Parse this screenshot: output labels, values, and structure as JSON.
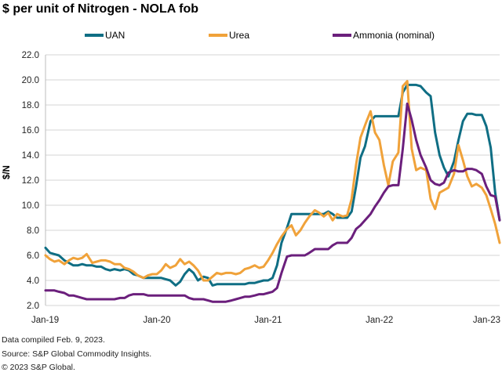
{
  "title": "$ per unit of Nitrogen - NOLA fob",
  "footer": {
    "line1": "Data compiled Feb. 9, 2023.",
    "line2": "Source: S&P Global Commodity Insights.",
    "line3": "© 2023 S&P Global."
  },
  "chart_data": {
    "type": "line",
    "title": "$ per unit of Nitrogen - NOLA fob",
    "xlabel": "",
    "ylabel": "$/N",
    "ylim": [
      2.0,
      22.0
    ],
    "yticks": [
      2.0,
      4.0,
      6.0,
      8.0,
      10.0,
      12.0,
      14.0,
      16.0,
      18.0,
      20.0,
      22.0
    ],
    "xlim": [
      2019.0,
      2023.08
    ],
    "xtick_labels": [
      "Jan-19",
      "Jan-20",
      "Jan-21",
      "Jan-22",
      "Jan-23"
    ],
    "xtick_values": [
      2019,
      2020,
      2021,
      2022,
      2023
    ],
    "grid": true,
    "legend": "top",
    "series": [
      {
        "name": "UAN",
        "color": "#0F6E84",
        "points": [
          [
            2019.0,
            6.6
          ],
          [
            2019.04,
            6.2
          ],
          [
            2019.08,
            6.1
          ],
          [
            2019.12,
            6.0
          ],
          [
            2019.17,
            5.6
          ],
          [
            2019.21,
            5.4
          ],
          [
            2019.25,
            5.2
          ],
          [
            2019.29,
            5.2
          ],
          [
            2019.33,
            5.3
          ],
          [
            2019.37,
            5.2
          ],
          [
            2019.42,
            5.2
          ],
          [
            2019.46,
            5.1
          ],
          [
            2019.5,
            5.1
          ],
          [
            2019.54,
            4.9
          ],
          [
            2019.58,
            4.8
          ],
          [
            2019.62,
            4.9
          ],
          [
            2019.67,
            4.8
          ],
          [
            2019.71,
            4.9
          ],
          [
            2019.75,
            4.8
          ],
          [
            2019.79,
            4.5
          ],
          [
            2019.83,
            4.4
          ],
          [
            2019.88,
            4.2
          ],
          [
            2019.92,
            4.2
          ],
          [
            2019.96,
            4.2
          ],
          [
            2020.0,
            4.2
          ],
          [
            2020.04,
            4.2
          ],
          [
            2020.08,
            4.1
          ],
          [
            2020.12,
            4.0
          ],
          [
            2020.17,
            3.6
          ],
          [
            2020.21,
            3.9
          ],
          [
            2020.25,
            4.5
          ],
          [
            2020.29,
            4.9
          ],
          [
            2020.33,
            4.6
          ],
          [
            2020.37,
            4.0
          ],
          [
            2020.42,
            4.3
          ],
          [
            2020.46,
            4.2
          ],
          [
            2020.5,
            3.6
          ],
          [
            2020.54,
            3.7
          ],
          [
            2020.58,
            3.7
          ],
          [
            2020.62,
            3.7
          ],
          [
            2020.67,
            3.7
          ],
          [
            2020.71,
            3.7
          ],
          [
            2020.75,
            3.7
          ],
          [
            2020.79,
            3.7
          ],
          [
            2020.83,
            3.8
          ],
          [
            2020.88,
            3.8
          ],
          [
            2020.92,
            3.9
          ],
          [
            2020.96,
            4.0
          ],
          [
            2021.0,
            4.0
          ],
          [
            2021.04,
            4.2
          ],
          [
            2021.08,
            5.2
          ],
          [
            2021.12,
            7.0
          ],
          [
            2021.17,
            8.2
          ],
          [
            2021.21,
            9.3
          ],
          [
            2021.25,
            9.3
          ],
          [
            2021.29,
            9.3
          ],
          [
            2021.33,
            9.3
          ],
          [
            2021.37,
            9.3
          ],
          [
            2021.42,
            9.3
          ],
          [
            2021.46,
            9.3
          ],
          [
            2021.5,
            9.3
          ],
          [
            2021.54,
            9.5
          ],
          [
            2021.58,
            9.3
          ],
          [
            2021.62,
            9.0
          ],
          [
            2021.67,
            9.0
          ],
          [
            2021.71,
            9.0
          ],
          [
            2021.75,
            9.5
          ],
          [
            2021.79,
            11.5
          ],
          [
            2021.83,
            13.8
          ],
          [
            2021.87,
            14.7
          ],
          [
            2021.92,
            16.7
          ],
          [
            2021.96,
            17.1
          ],
          [
            2022.0,
            17.1
          ],
          [
            2022.04,
            17.1
          ],
          [
            2022.08,
            17.1
          ],
          [
            2022.12,
            17.1
          ],
          [
            2022.17,
            17.1
          ],
          [
            2022.21,
            19.0
          ],
          [
            2022.25,
            19.6
          ],
          [
            2022.29,
            19.6
          ],
          [
            2022.33,
            19.6
          ],
          [
            2022.37,
            19.5
          ],
          [
            2022.42,
            19.0
          ],
          [
            2022.46,
            18.7
          ],
          [
            2022.5,
            15.8
          ],
          [
            2022.54,
            14.0
          ],
          [
            2022.58,
            13.0
          ],
          [
            2022.62,
            12.3
          ],
          [
            2022.67,
            13.5
          ],
          [
            2022.71,
            15.2
          ],
          [
            2022.75,
            16.7
          ],
          [
            2022.79,
            17.3
          ],
          [
            2022.83,
            17.3
          ],
          [
            2022.87,
            17.2
          ],
          [
            2022.92,
            17.2
          ],
          [
            2022.96,
            16.3
          ],
          [
            2023.0,
            14.6
          ],
          [
            2023.04,
            11.0
          ],
          [
            2023.08,
            8.8
          ]
        ]
      },
      {
        "name": "Urea",
        "color": "#F0A23A",
        "points": [
          [
            2019.0,
            6.0
          ],
          [
            2019.04,
            5.7
          ],
          [
            2019.08,
            5.5
          ],
          [
            2019.12,
            5.6
          ],
          [
            2019.17,
            5.3
          ],
          [
            2019.21,
            5.6
          ],
          [
            2019.25,
            5.8
          ],
          [
            2019.29,
            5.7
          ],
          [
            2019.33,
            5.8
          ],
          [
            2019.37,
            6.1
          ],
          [
            2019.42,
            5.4
          ],
          [
            2019.46,
            5.5
          ],
          [
            2019.5,
            5.6
          ],
          [
            2019.54,
            5.6
          ],
          [
            2019.58,
            5.5
          ],
          [
            2019.62,
            5.3
          ],
          [
            2019.67,
            5.3
          ],
          [
            2019.71,
            5.0
          ],
          [
            2019.75,
            4.9
          ],
          [
            2019.79,
            4.7
          ],
          [
            2019.83,
            4.4
          ],
          [
            2019.88,
            4.2
          ],
          [
            2019.92,
            4.4
          ],
          [
            2019.96,
            4.5
          ],
          [
            2020.0,
            4.5
          ],
          [
            2020.04,
            4.8
          ],
          [
            2020.08,
            5.3
          ],
          [
            2020.12,
            5.0
          ],
          [
            2020.17,
            5.2
          ],
          [
            2020.21,
            5.7
          ],
          [
            2020.25,
            5.3
          ],
          [
            2020.29,
            5.5
          ],
          [
            2020.33,
            5.2
          ],
          [
            2020.37,
            4.8
          ],
          [
            2020.42,
            4.0
          ],
          [
            2020.46,
            4.0
          ],
          [
            2020.5,
            4.3
          ],
          [
            2020.54,
            4.6
          ],
          [
            2020.58,
            4.5
          ],
          [
            2020.62,
            4.6
          ],
          [
            2020.67,
            4.6
          ],
          [
            2020.71,
            4.5
          ],
          [
            2020.75,
            4.6
          ],
          [
            2020.79,
            4.9
          ],
          [
            2020.83,
            5.0
          ],
          [
            2020.88,
            5.2
          ],
          [
            2020.92,
            5.0
          ],
          [
            2020.96,
            5.1
          ],
          [
            2021.0,
            5.6
          ],
          [
            2021.04,
            6.2
          ],
          [
            2021.08,
            6.9
          ],
          [
            2021.12,
            7.5
          ],
          [
            2021.17,
            8.1
          ],
          [
            2021.21,
            8.4
          ],
          [
            2021.25,
            7.6
          ],
          [
            2021.29,
            8.0
          ],
          [
            2021.33,
            8.6
          ],
          [
            2021.37,
            9.1
          ],
          [
            2021.42,
            9.6
          ],
          [
            2021.46,
            9.4
          ],
          [
            2021.5,
            9.1
          ],
          [
            2021.54,
            9.4
          ],
          [
            2021.58,
            8.8
          ],
          [
            2021.62,
            9.3
          ],
          [
            2021.67,
            9.1
          ],
          [
            2021.71,
            9.2
          ],
          [
            2021.75,
            10.5
          ],
          [
            2021.79,
            13.2
          ],
          [
            2021.83,
            15.4
          ],
          [
            2021.88,
            16.6
          ],
          [
            2021.92,
            17.5
          ],
          [
            2021.96,
            15.8
          ],
          [
            2022.0,
            15.2
          ],
          [
            2022.04,
            13.2
          ],
          [
            2022.08,
            11.6
          ],
          [
            2022.12,
            13.5
          ],
          [
            2022.17,
            14.2
          ],
          [
            2022.21,
            19.5
          ],
          [
            2022.25,
            19.9
          ],
          [
            2022.29,
            14.5
          ],
          [
            2022.33,
            12.8
          ],
          [
            2022.37,
            13.0
          ],
          [
            2022.42,
            12.8
          ],
          [
            2022.46,
            10.5
          ],
          [
            2022.5,
            9.7
          ],
          [
            2022.54,
            11.0
          ],
          [
            2022.58,
            11.2
          ],
          [
            2022.62,
            11.4
          ],
          [
            2022.67,
            12.5
          ],
          [
            2022.71,
            14.8
          ],
          [
            2022.75,
            13.6
          ],
          [
            2022.79,
            12.3
          ],
          [
            2022.83,
            11.5
          ],
          [
            2022.87,
            11.7
          ],
          [
            2022.92,
            11.4
          ],
          [
            2022.96,
            10.8
          ],
          [
            2023.0,
            9.7
          ],
          [
            2023.04,
            8.5
          ],
          [
            2023.08,
            7.0
          ]
        ]
      },
      {
        "name": "Ammonia (nominal)",
        "color": "#6B1F7C",
        "points": [
          [
            2019.0,
            3.2
          ],
          [
            2019.04,
            3.2
          ],
          [
            2019.08,
            3.2
          ],
          [
            2019.12,
            3.1
          ],
          [
            2019.17,
            3.0
          ],
          [
            2019.21,
            2.8
          ],
          [
            2019.25,
            2.8
          ],
          [
            2019.29,
            2.7
          ],
          [
            2019.33,
            2.6
          ],
          [
            2019.37,
            2.5
          ],
          [
            2019.42,
            2.5
          ],
          [
            2019.46,
            2.5
          ],
          [
            2019.5,
            2.5
          ],
          [
            2019.54,
            2.5
          ],
          [
            2019.58,
            2.5
          ],
          [
            2019.62,
            2.5
          ],
          [
            2019.67,
            2.6
          ],
          [
            2019.71,
            2.6
          ],
          [
            2019.75,
            2.8
          ],
          [
            2019.79,
            2.9
          ],
          [
            2019.83,
            2.9
          ],
          [
            2019.88,
            2.9
          ],
          [
            2019.92,
            2.8
          ],
          [
            2019.96,
            2.8
          ],
          [
            2020.0,
            2.8
          ],
          [
            2020.04,
            2.8
          ],
          [
            2020.08,
            2.8
          ],
          [
            2020.12,
            2.8
          ],
          [
            2020.17,
            2.8
          ],
          [
            2020.21,
            2.8
          ],
          [
            2020.25,
            2.8
          ],
          [
            2020.29,
            2.6
          ],
          [
            2020.33,
            2.5
          ],
          [
            2020.37,
            2.5
          ],
          [
            2020.42,
            2.5
          ],
          [
            2020.46,
            2.4
          ],
          [
            2020.5,
            2.3
          ],
          [
            2020.54,
            2.3
          ],
          [
            2020.58,
            2.3
          ],
          [
            2020.62,
            2.3
          ],
          [
            2020.67,
            2.4
          ],
          [
            2020.71,
            2.5
          ],
          [
            2020.75,
            2.6
          ],
          [
            2020.79,
            2.7
          ],
          [
            2020.83,
            2.7
          ],
          [
            2020.88,
            2.8
          ],
          [
            2020.92,
            2.9
          ],
          [
            2020.96,
            2.9
          ],
          [
            2021.0,
            3.0
          ],
          [
            2021.04,
            3.1
          ],
          [
            2021.08,
            3.4
          ],
          [
            2021.12,
            4.6
          ],
          [
            2021.17,
            5.9
          ],
          [
            2021.21,
            6.0
          ],
          [
            2021.25,
            6.0
          ],
          [
            2021.29,
            6.0
          ],
          [
            2021.33,
            6.0
          ],
          [
            2021.37,
            6.2
          ],
          [
            2021.42,
            6.5
          ],
          [
            2021.46,
            6.5
          ],
          [
            2021.5,
            6.5
          ],
          [
            2021.54,
            6.5
          ],
          [
            2021.58,
            6.8
          ],
          [
            2021.62,
            7.0
          ],
          [
            2021.67,
            7.0
          ],
          [
            2021.71,
            7.0
          ],
          [
            2021.75,
            7.4
          ],
          [
            2021.79,
            8.1
          ],
          [
            2021.83,
            8.4
          ],
          [
            2021.88,
            8.9
          ],
          [
            2021.92,
            9.3
          ],
          [
            2021.96,
            9.9
          ],
          [
            2022.0,
            10.4
          ],
          [
            2022.04,
            11.0
          ],
          [
            2022.08,
            11.5
          ],
          [
            2022.12,
            11.6
          ],
          [
            2022.17,
            11.6
          ],
          [
            2022.21,
            14.5
          ],
          [
            2022.25,
            18.1
          ],
          [
            2022.29,
            16.8
          ],
          [
            2022.33,
            15.2
          ],
          [
            2022.37,
            14.0
          ],
          [
            2022.42,
            13.0
          ],
          [
            2022.46,
            12.0
          ],
          [
            2022.5,
            11.7
          ],
          [
            2022.54,
            11.6
          ],
          [
            2022.58,
            11.8
          ],
          [
            2022.62,
            12.6
          ],
          [
            2022.67,
            12.8
          ],
          [
            2022.71,
            12.7
          ],
          [
            2022.75,
            12.7
          ],
          [
            2022.79,
            12.9
          ],
          [
            2022.83,
            12.9
          ],
          [
            2022.87,
            12.8
          ],
          [
            2022.92,
            12.5
          ],
          [
            2022.96,
            11.5
          ],
          [
            2023.0,
            10.8
          ],
          [
            2023.04,
            10.7
          ],
          [
            2023.08,
            8.8
          ]
        ]
      }
    ]
  }
}
